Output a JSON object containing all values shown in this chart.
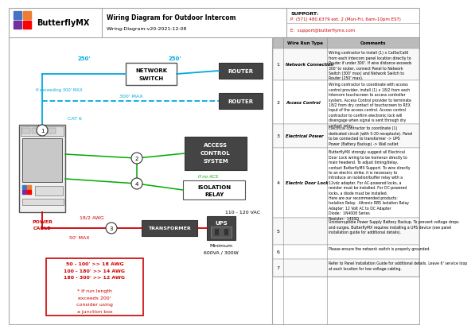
{
  "title": "Wiring Diagram for Outdoor Intercom",
  "subtitle": "Wiring-Diagram-v20-2021-12-08",
  "company": "ButterflyMX",
  "support_label": "SUPPORT:",
  "support_phone": "P: (571) 480.6379 ext. 2 (Mon-Fri, 6am-10pm EST)",
  "support_email": "E:  support@butterflymx.com",
  "bg_color": "#ffffff",
  "table_rows": [
    {
      "num": "1",
      "type": "Network Connection",
      "comment": "Wiring contractor to install (1) x Cat5e/Cat6\nfrom each Intercom panel location directly to\nRouter if under 300'. If wire distance exceeds\n300' to router, connect Panel to Network\nSwitch (300' max) and Network Switch to\nRouter (250' max)."
    },
    {
      "num": "2",
      "type": "Access Control",
      "comment": "Wiring contractor to coordinate with access\ncontrol provider, install (1) x 18/2 from each\nIntercom touchscreen to access controller\nsystem. Access Control provider to terminate\n18/2 from dry contact of touchscreen to REX\nInput of the access control. Access control\ncontractor to confirm electronic lock will\ndisengage when signal is sent through dry\ncontact relay."
    },
    {
      "num": "3",
      "type": "Electrical Power",
      "comment": "Electrical contractor to coordinate (1)\ndedicated circuit (with 5-20 receptacle). Panel\nto be connected to transformer -> UPS\nPower (Battery Backup) -> Wall outlet"
    },
    {
      "num": "4",
      "type": "Electric Door Lock",
      "comment": "ButterflyMX strongly suggest all Electrical\nDoor Lock wiring to be homerun directly to\nmain headend. To adjust timing/delay,\ncontact ButterflyMX Support. To wire directly\nto an electric strike, it is necessary to\nintroduce an isolation/buffer relay with a\n12vdc adapter. For AC-powered locks, a\nresistor must be installed. For DC-powered\nlocks, a diode must be installed.\nHere are our recommended products:\nIsolation Relay:  Altronix RBS Isolation Relay\nAdapter: 12 Volt AC to DC Adapter\nDiode:  1N4008 Series\nResistor:  1450Ω"
    },
    {
      "num": "5",
      "type": "",
      "comment": "Uninterruptible Power Supply Battery Backup. To prevent voltage drops\nand surges, ButterflyMX requires installing a UPS device (see panel\ninstallation guide for additional details)."
    },
    {
      "num": "6",
      "type": "",
      "comment": "Please ensure the network switch is properly grounded."
    },
    {
      "num": "7",
      "type": "",
      "comment": "Refer to Panel Installation Guide for additional details. Leave 6' service loop\nat each location for low voltage cabling."
    }
  ],
  "colors": {
    "cyan": "#00aadd",
    "green": "#00aa00",
    "red": "#cc0000",
    "black": "#111111",
    "dark_box": "#444444",
    "light_box": "#ffffff",
    "panel_bg": "#eeeeee",
    "table_hdr": "#bbbbbb"
  }
}
